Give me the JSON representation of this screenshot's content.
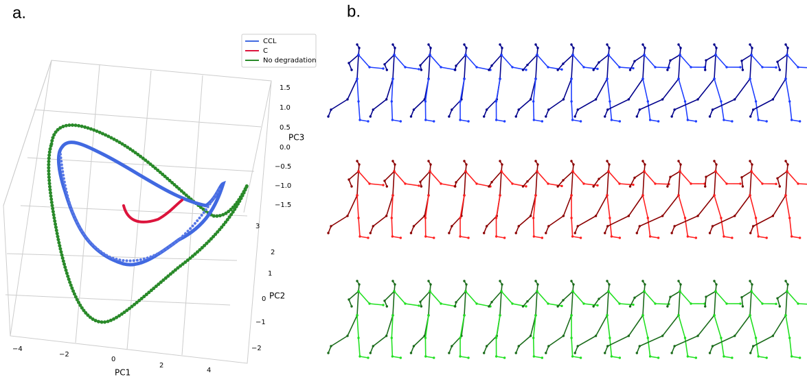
{
  "panel_a": {
    "label": "a.",
    "legend": [
      "CCL",
      "C",
      "No degradation"
    ],
    "x_axis": {
      "label": "PC1",
      "ticks": [
        "−4",
        "−2",
        "0",
        "2",
        "4"
      ]
    },
    "y_axis": {
      "label": "PC2",
      "ticks": [
        "3",
        "2",
        "1",
        "0",
        "−1",
        "−2"
      ]
    },
    "z_axis": {
      "label": "PC3",
      "ticks": [
        "1.5",
        "1.0",
        "0.5",
        "0.0",
        "−0.5",
        "−1.0",
        "−1.5"
      ]
    }
  },
  "panel_b": {
    "label": "b."
  }
}
